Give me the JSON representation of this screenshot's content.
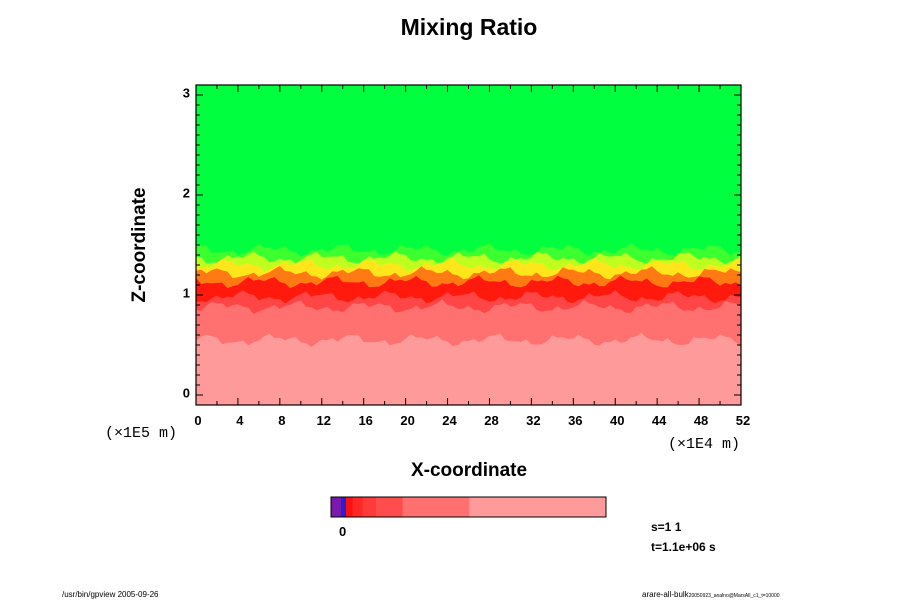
{
  "chart_data": {
    "type": "heatmap",
    "title": "Mixing Ratio",
    "xlabel": "X-coordinate",
    "ylabel": "Z-coordinate",
    "x_ticks": [
      "0",
      "4",
      "8",
      "12",
      "16",
      "20",
      "24",
      "28",
      "32",
      "36",
      "40",
      "44",
      "48",
      "52"
    ],
    "y_ticks": [
      "0",
      "1",
      "2",
      "3"
    ],
    "x_scale_label": "(×1E4 m)",
    "y_scale_label": "(×1E5 m)",
    "xlim": [
      0,
      52
    ],
    "ylim": [
      -0.1,
      3.1
    ],
    "grid": false,
    "layers": [
      {
        "name": "upper",
        "z_from": 1.45,
        "z_to": 3.1,
        "color": "#00ff3f"
      },
      {
        "name": "transition-green",
        "z_from": 1.37,
        "z_to": 1.45,
        "color": "#3cff2f"
      },
      {
        "name": "transition-yellowgreen",
        "z_from": 1.3,
        "z_to": 1.37,
        "color": "#bfff20"
      },
      {
        "name": "transition-yellow",
        "z_from": 1.22,
        "z_to": 1.3,
        "color": "#ffe61a"
      },
      {
        "name": "transition-orange",
        "z_from": 1.13,
        "z_to": 1.22,
        "color": "#ff7a12"
      },
      {
        "name": "peak-red",
        "z_from": 0.98,
        "z_to": 1.13,
        "color": "#ff1a0d"
      },
      {
        "name": "mid-red",
        "z_from": 0.88,
        "z_to": 0.98,
        "color": "#ff4545"
      },
      {
        "name": "lower-pink",
        "z_from": 0.55,
        "z_to": 0.88,
        "color": "#ff7070"
      },
      {
        "name": "bottom-pink",
        "z_from": -0.1,
        "z_to": 0.55,
        "color": "#ff9a9a"
      }
    ],
    "colorbar": {
      "label": "0",
      "bins": [
        {
          "color": "#7a18b0",
          "weight": 1.2
        },
        {
          "color": "#2a1ed0",
          "weight": 0.6
        },
        {
          "color": "#ff1010",
          "weight": 0.8
        },
        {
          "color": "#ff2828",
          "weight": 1.2
        },
        {
          "color": "#ff3a3a",
          "weight": 1.6
        },
        {
          "color": "#ff4c4c",
          "weight": 3.2
        },
        {
          "color": "#ff7070",
          "weight": 8.0
        },
        {
          "color": "#ff9a9a",
          "weight": 16.4
        }
      ]
    }
  },
  "info": {
    "s": "s=1 1",
    "t": "t=1.1e+06 s"
  },
  "footer": {
    "left": "/usr/bin/gpview 2005-09-26",
    "right_main": "arare-all-bulk",
    "right_small": "20050923_analno@MarsAll_c1_t=10000"
  }
}
